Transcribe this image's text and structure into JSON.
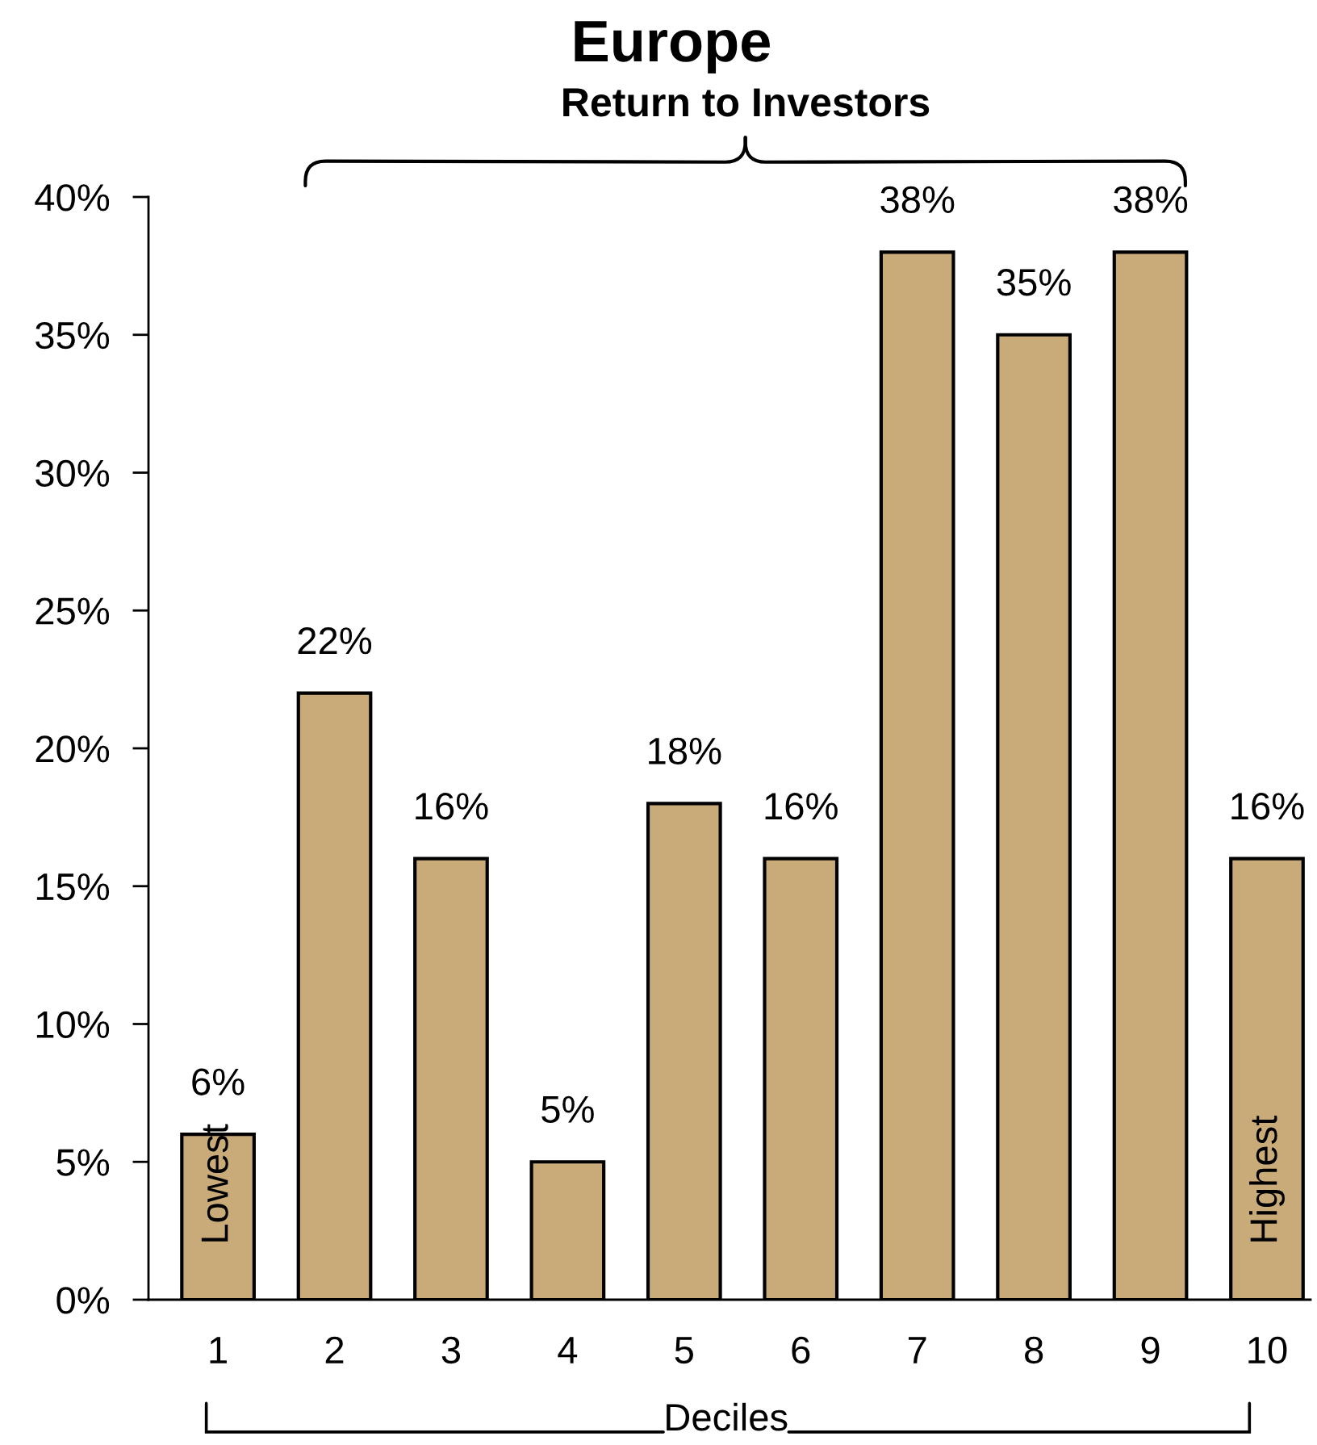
{
  "chart_data": {
    "type": "bar",
    "title": "Europe",
    "subtitle": "Return to Investors",
    "xlabel": "Deciles",
    "categories": [
      "1",
      "2",
      "3",
      "4",
      "5",
      "6",
      "7",
      "8",
      "9",
      "10"
    ],
    "values": [
      6,
      22,
      16,
      5,
      18,
      16,
      38,
      35,
      38,
      16
    ],
    "value_labels": [
      "6%",
      "22%",
      "16%",
      "5%",
      "18%",
      "16%",
      "38%",
      "35%",
      "38%",
      "16%"
    ],
    "color": "#c9ab79",
    "ylim": [
      0,
      40
    ],
    "yticks": [
      {
        "value": 0,
        "label": "0%"
      },
      {
        "value": 5,
        "label": "5%"
      },
      {
        "value": 10,
        "label": "10%"
      },
      {
        "value": 15,
        "label": "15%"
      },
      {
        "value": 20,
        "label": "20%"
      },
      {
        "value": 25,
        "label": "25%"
      },
      {
        "value": 30,
        "label": "30%"
      },
      {
        "value": 35,
        "label": "35%"
      },
      {
        "value": 40,
        "label": "40%"
      }
    ],
    "annotations": [
      "Lowest",
      "Highest"
    ],
    "grid": false
  }
}
